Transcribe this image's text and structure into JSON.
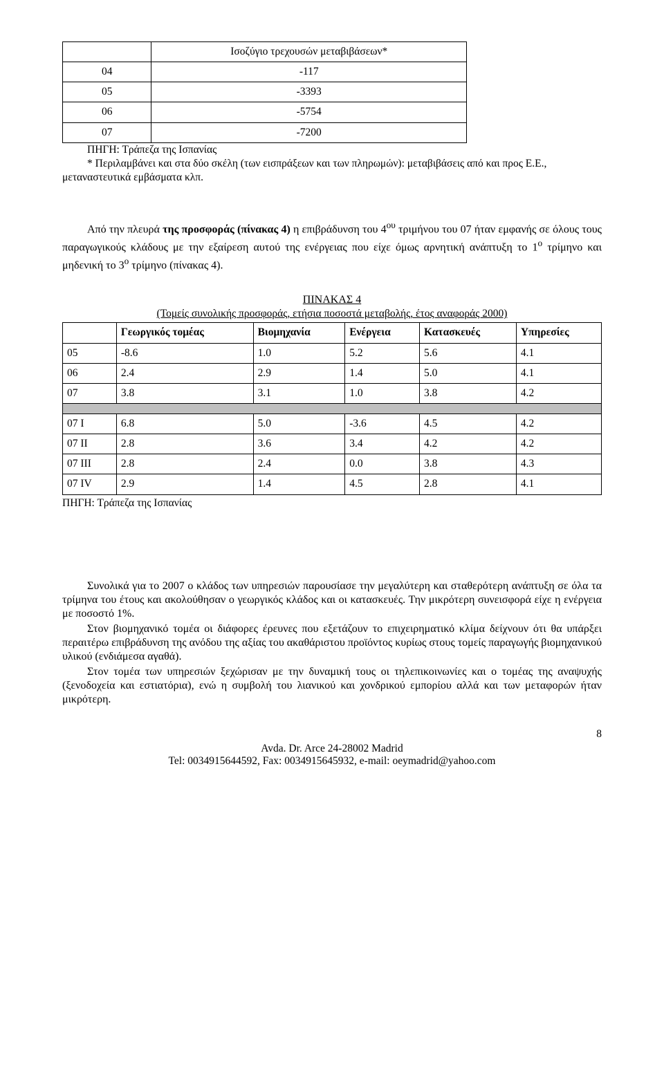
{
  "table1": {
    "title": "Ισοζύγιο τρεχουσών μεταβιβάσεων*",
    "rows": [
      {
        "year": "04",
        "value": "-117"
      },
      {
        "year": "05",
        "value": "-3393"
      },
      {
        "year": "06",
        "value": "-5754"
      },
      {
        "year": "07",
        "value": "-7200"
      }
    ],
    "source_line1": "ΠΗΓΗ: Τράπεζα της Ισπανίας",
    "source_line2": "* Περιλαμβάνει και στα δύο σκέλη (των εισπράξεων και των πληρωμών): μεταβιβάσεις από και προς Ε.Ε., μεταναστευτικά εμβάσματα κλπ."
  },
  "para1": "Από την πλευρά <b>της προσφοράς  (πίνακας 4)</b> η επιβράδυνση του 4<sup>ου</sup> τριμήνου του 07 ήταν εμφανής σε όλους τους παραγωγικούς κλάδους με την εξαίρεση αυτού της ενέργειας που είχε όμως αρνητική ανάπτυξη το 1<sup>ο</sup> τρίμηνο και μηδενική το 3<sup>ο</sup> τρίμηνο (πίνακας 4).",
  "table4": {
    "caption": "ΠΙΝΑΚΑΣ 4",
    "subcaption": "(Τομείς συνολικής προσφοράς, ετήσια ποσοστά μεταβολής, έτος αναφοράς 2000)",
    "headers": [
      "",
      "Γεωργικός τομέας",
      "Βιομηχανία",
      "Ενέργεια",
      "Κατασκευές",
      "Υπηρεσίες"
    ],
    "rows_top": [
      {
        "label": "05",
        "cells": [
          "-8.6",
          "1.0",
          "5.2",
          "5.6",
          "4.1"
        ]
      },
      {
        "label": "06",
        "cells": [
          "2.4",
          "2.9",
          "1.4",
          "5.0",
          "4.1"
        ]
      },
      {
        "label": "07",
        "cells": [
          "3.8",
          "3.1",
          "1.0",
          "3.8",
          "4.2"
        ]
      }
    ],
    "rows_bottom": [
      {
        "label": "07  I",
        "cells": [
          "6.8",
          "5.0",
          "-3.6",
          "4.5",
          "4.2"
        ]
      },
      {
        "label": "07  II",
        "cells": [
          "2.8",
          "3.6",
          "3.4",
          "4.2",
          "4.2"
        ]
      },
      {
        "label": "07 III",
        "cells": [
          "2.8",
          "2.4",
          "0.0",
          "3.8",
          "4.3"
        ]
      },
      {
        "label": "07 IV",
        "cells": [
          "2.9",
          "1.4",
          "4.5",
          "2.8",
          "4.1"
        ]
      }
    ],
    "source": "ΠΗΓΗ: Τράπεζα της Ισπανίας"
  },
  "body": {
    "p1": "Συνολικά για το 2007 ο κλάδος των υπηρεσιών παρουσίασε την μεγαλύτερη και σταθερότερη ανάπτυξη σε όλα τα τρίμηνα του έτους και ακολούθησαν ο γεωργικός κλάδος και οι κατασκευές. Την μικρότερη συνεισφορά είχε η ενέργεια με ποσοστό 1%.",
    "p2": "Στον βιομηχανικό τομέα οι διάφορες έρευνες που εξετάζουν το επιχειρηματικό κλίμα δείχνουν ότι θα υπάρξει περαιτέρω επιβράδυνση της ανόδου της αξίας του ακαθάριστου προϊόντος κυρίως στους τομείς παραγωγής βιομηχανικού υλικού (ενδιάμεσα αγαθά).",
    "p3": "Στον τομέα των υπηρεσιών ξεχώρισαν με την δυναμική τους οι τηλεπικοινωνίες και ο τομέας της αναψυχής (ξενοδοχεία και εστιατόρια), ενώ η συμβολή του λιανικού και χονδρικού εμπορίου αλλά και των μεταφορών ήταν μικρότερη."
  },
  "page_number": "8",
  "footer": {
    "line1": "Avda. Dr. Arce 24-28002 Madrid",
    "line2": "Tel: 0034915644592, Fax: 0034915645932, e-mail: oeymadrid@yahoo.com"
  }
}
